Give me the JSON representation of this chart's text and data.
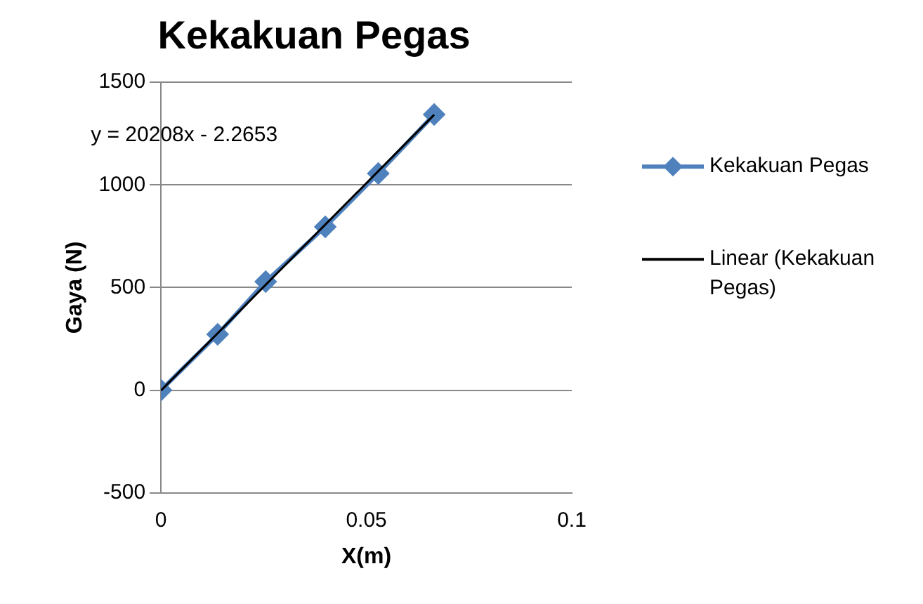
{
  "chart_data": {
    "type": "scatter",
    "title": "Kekakuan Pegas",
    "xlabel": "X(m)",
    "ylabel": "Gaya (N)",
    "xlim": [
      0,
      0.1
    ],
    "xticks": [
      0,
      0.05,
      0.1
    ],
    "ylim": [
      -500,
      1500
    ],
    "yticks": [
      -500,
      0,
      500,
      1000,
      1500
    ],
    "grid": "y",
    "legend": "right",
    "annotations": [
      "y = 20208x - 2.2653"
    ],
    "series": [
      {
        "name": "Kekakuan Pegas",
        "type": "line",
        "color": "#4f81bd",
        "marker": "diamond",
        "x": [
          0,
          0.0138,
          0.0255,
          0.04,
          0.0529,
          0.0665
        ],
        "values": [
          0,
          272,
          529,
          796,
          1056,
          1343
        ]
      },
      {
        "name": "Linear (Kekakuan Pegas)",
        "type": "line",
        "color": "#000000",
        "marker": "none",
        "x": [
          0,
          0.0665
        ],
        "values": [
          -2,
          1342
        ]
      }
    ]
  }
}
